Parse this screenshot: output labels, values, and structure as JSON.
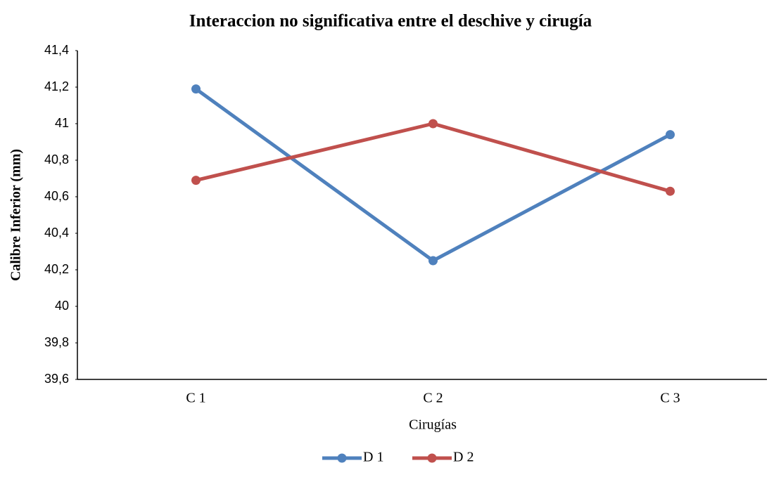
{
  "chart_data": {
    "type": "line",
    "title": "Interaccion no significativa entre el deschive y cirugía",
    "x_label": "Cirugías",
    "y_label": "Calibre Inferior (mm)",
    "categories": [
      "C 1",
      "C 2",
      "C 3"
    ],
    "series": [
      {
        "name": "D 1",
        "color": "#4f81bd",
        "values": [
          41.19,
          40.25,
          40.94
        ]
      },
      {
        "name": "D 2",
        "color": "#c0504d",
        "values": [
          40.69,
          41.0,
          40.63
        ]
      }
    ],
    "ylim": [
      39.6,
      41.4
    ],
    "yticks": [
      {
        "value": 39.6,
        "label": "39,6"
      },
      {
        "value": 39.8,
        "label": "39,8"
      },
      40,
      {
        "value": 40.2,
        "label": "40,2"
      },
      {
        "value": 40.4,
        "label": "40,4"
      },
      {
        "value": 40.6,
        "label": "40,6"
      },
      {
        "value": 40.8,
        "label": "40,8"
      },
      41,
      {
        "value": 41.2,
        "label": "41,2"
      },
      {
        "value": 41.4,
        "label": "41,4"
      }
    ],
    "grid": false,
    "legend": "bottom"
  }
}
